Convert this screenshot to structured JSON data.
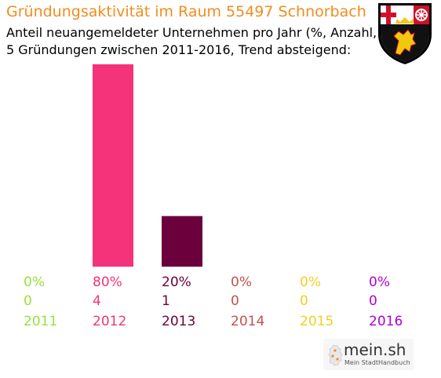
{
  "header": {
    "title": "Gründungsaktivität im Raum 55497 Schnorbach",
    "subtitle_line1": "Anteil neuangemeldeter Unternehmen pro Jahr (%, Anzahl, Jahr)",
    "subtitle_line2": "5 Gründungen zwischen 2011-2016, Trend absteigend:"
  },
  "crest": {
    "icon": "rhineland-palatinate-coat-of-arms"
  },
  "branding": {
    "name": "mein.sh",
    "tagline": "Mein StadtHandbuch",
    "icon": "germany-map-logo"
  },
  "chart_data": {
    "type": "bar",
    "categories": [
      "2011",
      "2012",
      "2013",
      "2014",
      "2015",
      "2016"
    ],
    "percent_labels": [
      "0%",
      "80%",
      "20%",
      "0%",
      "0%",
      "0%"
    ],
    "values": [
      0,
      80,
      20,
      0,
      0,
      0
    ],
    "counts": [
      0,
      4,
      1,
      0,
      0,
      0
    ],
    "colors": [
      "#99e03c",
      "#f5337a",
      "#6b003c",
      "#c94f4f",
      "#f0d020",
      "#b100d0"
    ],
    "ylim": [
      0,
      80
    ],
    "grid": false,
    "legend": "none"
  }
}
